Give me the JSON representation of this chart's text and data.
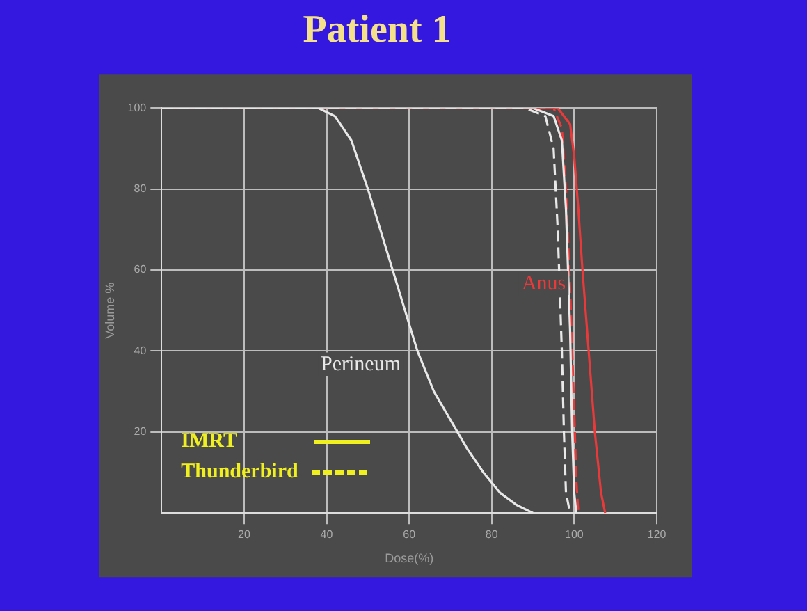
{
  "chart_data": {
    "type": "line",
    "title": "Patient 1",
    "xlabel": "Dose(%)",
    "ylabel": "Volume %",
    "xlim": [
      0,
      120
    ],
    "xticks": [
      20,
      40,
      60,
      80,
      100,
      120
    ],
    "ylim": [
      0,
      100
    ],
    "yticks": [
      20,
      40,
      60,
      80,
      100
    ],
    "grid": true,
    "marker": "none",
    "series": [
      {
        "name": "Perineum",
        "color": "#e8e8e8",
        "line_style": "solid",
        "x": [
          0,
          38,
          42,
          46,
          50,
          53,
          56,
          59,
          62,
          66,
          70,
          74,
          78,
          82,
          86,
          90
        ],
        "values": [
          100,
          100,
          98,
          92,
          80,
          70,
          60,
          50,
          40,
          30,
          23,
          16,
          10,
          5,
          2,
          0
        ]
      },
      {
        "color": "#e8e8e8",
        "line_style": "dashed",
        "x": [
          0,
          88,
          93,
          95,
          96,
          97,
          97.5,
          98,
          99
        ],
        "values": [
          100,
          100,
          98,
          90,
          70,
          40,
          20,
          5,
          0
        ]
      },
      {
        "color": "#e8e8e8",
        "line_style": "solid",
        "x": [
          0,
          90,
          95,
          97,
          98,
          99,
          99.5,
          100,
          100.5
        ],
        "values": [
          100,
          100,
          98,
          92,
          75,
          45,
          20,
          5,
          0
        ]
      },
      {
        "color": "#e83a3a",
        "line_style": "dashed",
        "x": [
          0,
          95,
          97,
          98,
          99,
          100,
          100.5,
          101
        ],
        "values": [
          100,
          100,
          95,
          80,
          55,
          25,
          8,
          0
        ]
      },
      {
        "name": "Anus",
        "color": "#e83a3a",
        "line_style": "solid",
        "x": [
          0,
          96,
          99,
          100,
          101,
          102,
          103.5,
          105,
          106.5,
          107.5
        ],
        "values": [
          100,
          100,
          96,
          88,
          75,
          60,
          40,
          20,
          5,
          0
        ]
      }
    ],
    "annotations": [
      "IMRT",
      "Thunderbird"
    ]
  }
}
